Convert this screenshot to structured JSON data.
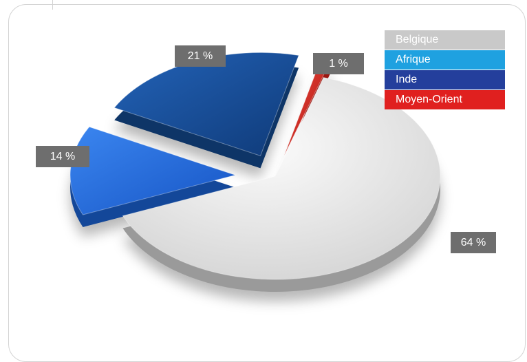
{
  "chart_data": {
    "type": "pie",
    "categories": [
      "Belgique",
      "Afrique",
      "Inde",
      "Moyen-Orient"
    ],
    "values": [
      64,
      14,
      21,
      1
    ],
    "value_labels": [
      "64 %",
      "14 %",
      "21 %",
      "1 %"
    ],
    "colors": [
      "#d6d6d6",
      "#1b63d4",
      "#144a8f",
      "#d42018"
    ],
    "legend_colors": [
      "#c9c9c9",
      "#1fa1e0",
      "#243f9c",
      "#e0201f"
    ],
    "legend_position": "top-right",
    "three_d": true
  }
}
